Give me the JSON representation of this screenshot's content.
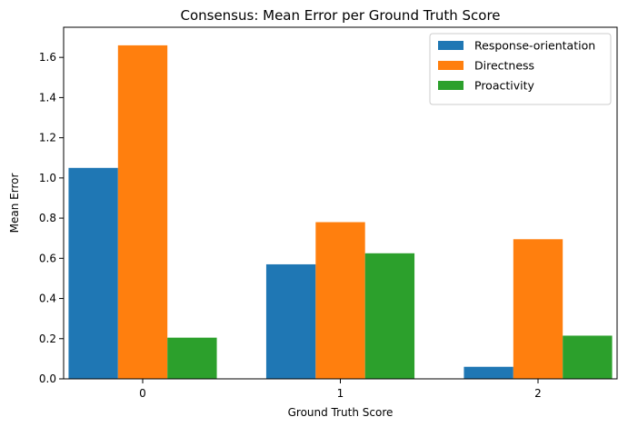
{
  "chart_data": {
    "type": "bar",
    "title": "Consensus: Mean Error per Ground Truth Score",
    "xlabel": "Ground Truth Score",
    "ylabel": "Mean Error",
    "categories": [
      "0",
      "1",
      "2"
    ],
    "series": [
      {
        "name": "Response-orientation",
        "color": "#1f77b4",
        "values": [
          1.05,
          0.57,
          0.06
        ]
      },
      {
        "name": "Directness",
        "color": "#ff7f0e",
        "values": [
          1.66,
          0.78,
          0.695
        ]
      },
      {
        "name": "Proactivity",
        "color": "#2ca02c",
        "values": [
          0.205,
          0.625,
          0.215
        ]
      }
    ],
    "ylim": [
      0,
      1.75
    ],
    "yticks": [
      0.0,
      0.2,
      0.4,
      0.6,
      0.8,
      1.0,
      1.2,
      1.4,
      1.6
    ],
    "ytick_labels": [
      "0.0",
      "0.2",
      "0.4",
      "0.6",
      "0.8",
      "1.0",
      "1.2",
      "1.4",
      "1.6"
    ],
    "legend_position": "top-right",
    "grid": false
  }
}
